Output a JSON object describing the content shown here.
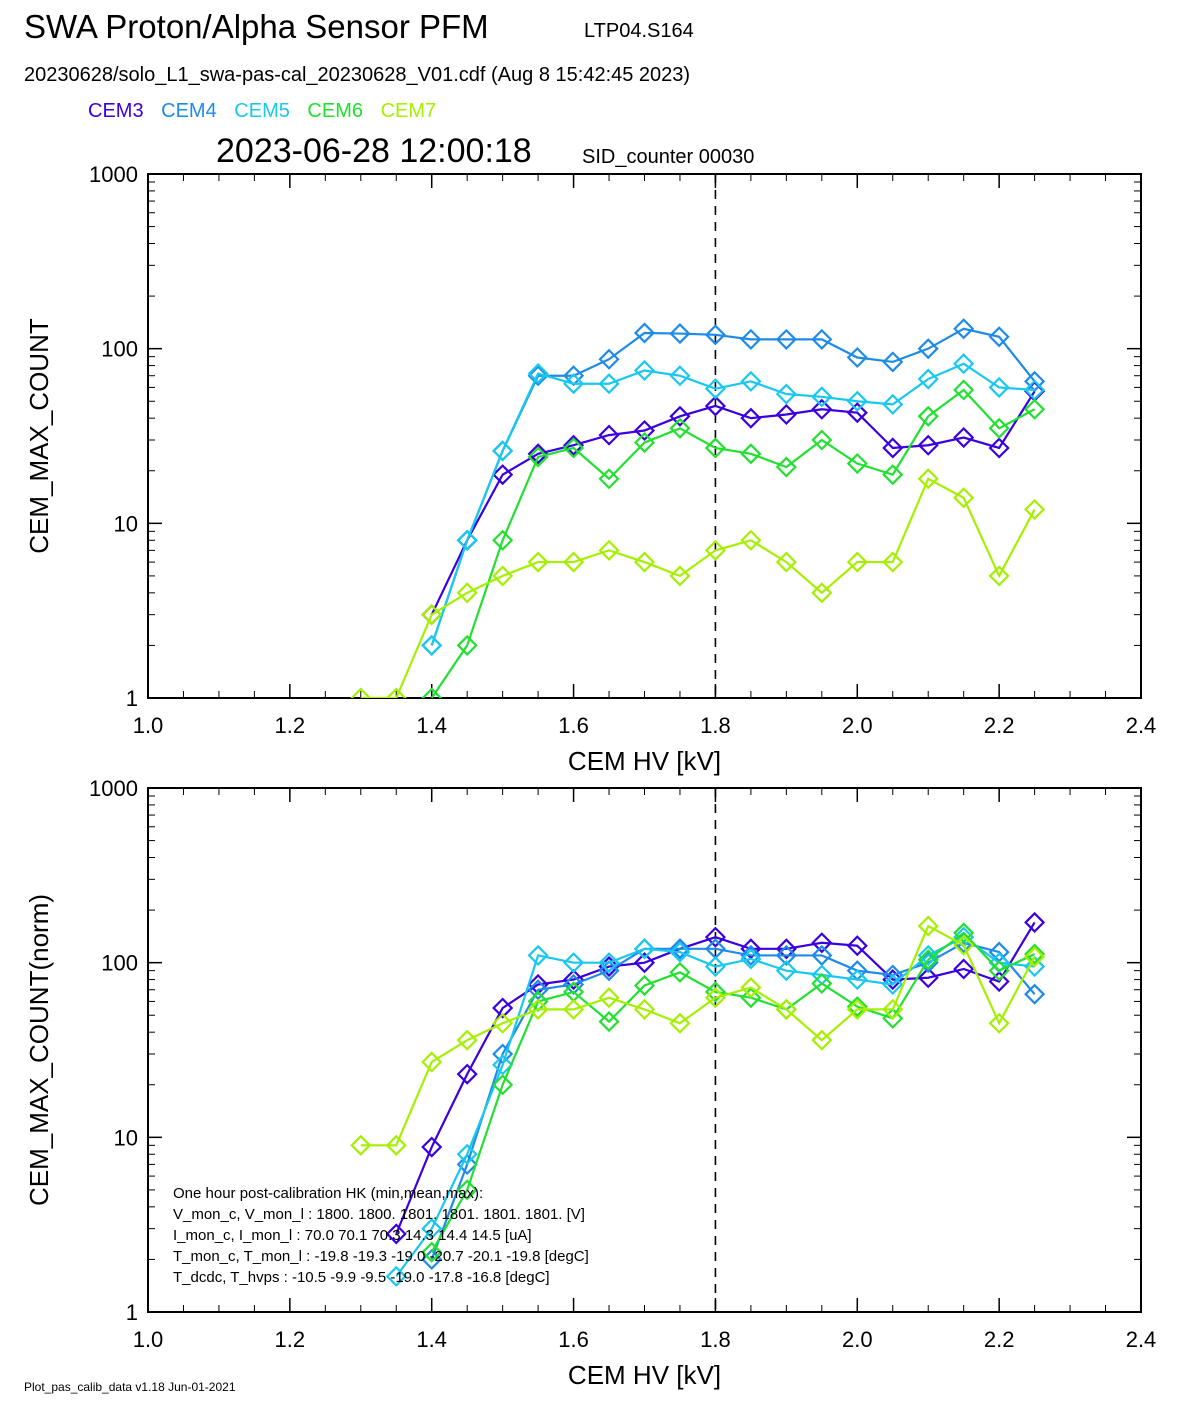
{
  "header": {
    "title": "SWA Proton/Alpha Sensor PFM",
    "run_id": "LTP04.S164",
    "file_line": "20230628/solo_L1_swa-pas-cal_20230628_V01.cdf  (Aug  8 15:42:45 2023)",
    "timestamp": "2023-06-28 12:00:18",
    "sid_counter": "SID_counter 00030"
  },
  "legend": [
    {
      "label": "CEM3",
      "color": "#3a00e0"
    },
    {
      "label": "CEM4",
      "color": "#1e8be8"
    },
    {
      "label": "CEM5",
      "color": "#18c8ee"
    },
    {
      "label": "CEM6",
      "color": "#22e030"
    },
    {
      "label": "CEM7",
      "color": "#a4f000"
    }
  ],
  "footer": "Plot_pas_calib_data v1.18 Jun-01-2021",
  "hk_table": [
    "One hour post-calibration HK (min,mean,max):",
    "V_mon_c, V_mon_l :    1800.  1800.  1801.      1801.  1801.  1801.  [V]",
    "I_mon_c,  I_mon_l :     70.0   70.1   70.3       14.3   14.4   14.5  [uA]",
    "T_mon_c, T_mon_l :  -19.8  -19.3  -19.0      -20.7  -20.1  -19.8  [degC]",
    "T_dcdc,    T_hvps :    -10.5   -9.9   -9.5       -19.0  -17.8  -16.8  [degC]"
  ],
  "chart_data": [
    {
      "type": "line",
      "xlabel": "CEM HV [kV]",
      "ylabel": "CEM_MAX_COUNT",
      "xlim": [
        1.0,
        2.4
      ],
      "ylim": [
        1,
        1000
      ],
      "yscale": "log",
      "xticks": [
        "1.0",
        "1.2",
        "1.4",
        "1.6",
        "1.8",
        "2.0",
        "2.2",
        "2.4"
      ],
      "yticks": [
        "1",
        "10",
        "100",
        "1000"
      ],
      "vline": 1.8,
      "x": [
        1.3,
        1.35,
        1.4,
        1.45,
        1.5,
        1.55,
        1.6,
        1.65,
        1.7,
        1.75,
        1.8,
        1.85,
        1.9,
        1.95,
        2.0,
        2.05,
        2.1,
        2.15,
        2.2,
        2.25
      ],
      "series": [
        {
          "name": "CEM3",
          "values": [
            null,
            null,
            3,
            8,
            19,
            25,
            28,
            32,
            34,
            41,
            47,
            40,
            42,
            45,
            43,
            27,
            28,
            31,
            27,
            57
          ]
        },
        {
          "name": "CEM4",
          "values": [
            null,
            null,
            2,
            8,
            26,
            70,
            70,
            87,
            123,
            122,
            120,
            113,
            113,
            113,
            89,
            84,
            100,
            130,
            117,
            65
          ]
        },
        {
          "name": "CEM5",
          "values": [
            null,
            null,
            2,
            8,
            26,
            72,
            63,
            63,
            75,
            70,
            59,
            65,
            55,
            53,
            50,
            48,
            67,
            82,
            60,
            58
          ]
        },
        {
          "name": "CEM6",
          "values": [
            null,
            null,
            1,
            2,
            8,
            24,
            27,
            18,
            29,
            35,
            27,
            25,
            21,
            30,
            22,
            19,
            41,
            58,
            35,
            45
          ]
        },
        {
          "name": "CEM7",
          "values": [
            1,
            1,
            3,
            4,
            5,
            6,
            6,
            7,
            6,
            5,
            7,
            8,
            6,
            4,
            6,
            6,
            18,
            14,
            5,
            12
          ]
        }
      ]
    },
    {
      "type": "line",
      "xlabel": "CEM HV [kV]",
      "ylabel": "CEM_MAX_COUNT(norm)",
      "xlim": [
        1.0,
        2.4
      ],
      "ylim": [
        1,
        1000
      ],
      "yscale": "log",
      "xticks": [
        "1.0",
        "1.2",
        "1.4",
        "1.6",
        "1.8",
        "2.0",
        "2.2",
        "2.4"
      ],
      "yticks": [
        "1",
        "10",
        "100",
        "1000"
      ],
      "vline": 1.8,
      "x": [
        1.3,
        1.35,
        1.4,
        1.45,
        1.5,
        1.55,
        1.6,
        1.65,
        1.7,
        1.75,
        1.8,
        1.85,
        1.9,
        1.95,
        2.0,
        2.05,
        2.1,
        2.15,
        2.2,
        2.25
      ],
      "series": [
        {
          "name": "CEM3",
          "values": [
            null,
            2.8,
            8.8,
            23,
            55,
            75,
            80,
            95,
            100,
            120,
            140,
            120,
            120,
            130,
            125,
            80,
            82,
            92,
            78,
            170
          ]
        },
        {
          "name": "CEM4",
          "values": [
            null,
            null,
            2,
            7,
            30,
            70,
            75,
            90,
            120,
            120,
            120,
            110,
            110,
            110,
            90,
            85,
            100,
            130,
            115,
            66
          ]
        },
        {
          "name": "CEM5",
          "values": [
            null,
            1.6,
            3,
            8,
            26,
            110,
            100,
            100,
            120,
            115,
            95,
            105,
            90,
            85,
            80,
            75,
            110,
            140,
            100,
            95
          ]
        },
        {
          "name": "CEM6",
          "values": [
            null,
            null,
            2.2,
            5,
            20,
            60,
            68,
            46,
            74,
            88,
            68,
            63,
            54,
            76,
            56,
            48,
            104,
            148,
            90,
            112
          ]
        },
        {
          "name": "CEM7",
          "values": [
            9,
            9,
            27,
            36,
            45,
            54,
            54,
            63,
            54,
            45,
            63,
            72,
            54,
            36,
            54,
            54,
            162,
            126,
            45,
            108
          ]
        }
      ]
    }
  ]
}
